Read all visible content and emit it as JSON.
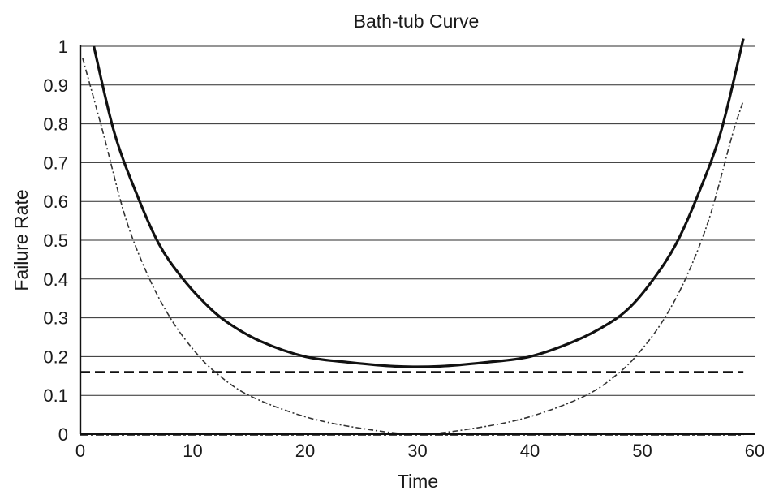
{
  "chart_data": {
    "type": "line",
    "title": "Bath-tub Curve",
    "xlabel": "Time",
    "ylabel": "Failure Rate",
    "xlim": [
      0,
      60
    ],
    "ylim": [
      0,
      1
    ],
    "x_ticks": [
      "0",
      "10",
      "20",
      "30",
      "40",
      "50",
      "60"
    ],
    "y_ticks": [
      "0",
      "0.1",
      "0.2",
      "0.3",
      "0.4",
      "0.5",
      "0.6",
      "0.7",
      "0.8",
      "0.9",
      "1"
    ],
    "grid": "horizontal",
    "legend": "none",
    "series": [
      {
        "style": "solid",
        "x": [
          1.2,
          3,
          5,
          7,
          9,
          11,
          13,
          16,
          20,
          24,
          28,
          32,
          36,
          40,
          44,
          47,
          49,
          51,
          53,
          55,
          57,
          59
        ],
        "y": [
          1.0,
          0.78,
          0.62,
          0.49,
          0.405,
          0.34,
          0.29,
          0.24,
          0.2,
          0.185,
          0.175,
          0.175,
          0.185,
          0.2,
          0.24,
          0.285,
          0.33,
          0.4,
          0.49,
          0.62,
          0.78,
          1.02
        ]
      },
      {
        "style": "dashed",
        "x": [
          0,
          59
        ],
        "y": [
          0.16,
          0.16
        ]
      },
      {
        "style": "dash-dot",
        "x": [
          0.2,
          2,
          4,
          6,
          8,
          10,
          12,
          15,
          20,
          25,
          30,
          35,
          40,
          45,
          48,
          50,
          52,
          54,
          56,
          58,
          59
        ],
        "y": [
          0.97,
          0.78,
          0.56,
          0.41,
          0.3,
          0.22,
          0.16,
          0.1,
          0.045,
          0.015,
          0.0,
          0.015,
          0.045,
          0.1,
          0.16,
          0.22,
          0.3,
          0.41,
          0.56,
          0.77,
          0.86
        ]
      },
      {
        "style": "dotted",
        "x": [
          0,
          59
        ],
        "y": [
          0.0,
          0.0
        ]
      }
    ]
  }
}
